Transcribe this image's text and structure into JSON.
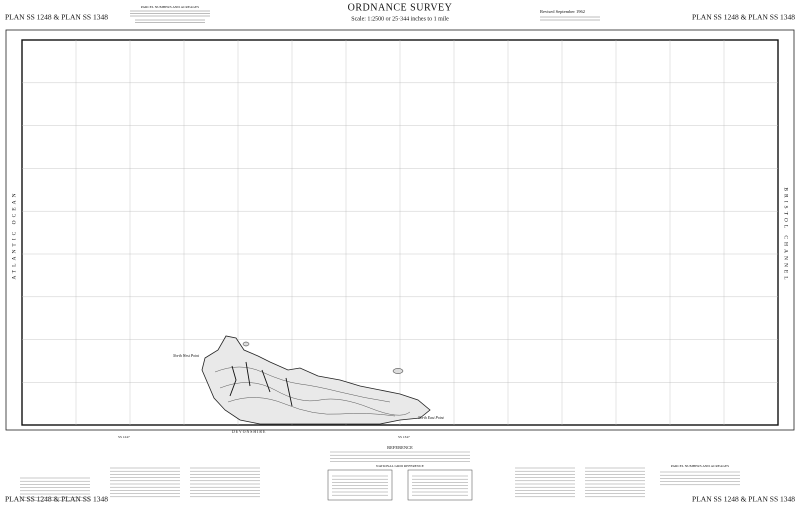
{
  "header": {
    "title": "ORDNANCE SURVEY",
    "scale": "Scale: 1:2500 or 25·344 inches to 1 mile",
    "revised": "Revised September 1962",
    "parcel_heading": "PARCEL NUMBERS AND ACREAGES"
  },
  "corners": {
    "top_left": "PLAN SS 1248 & PLAN SS 1348",
    "top_right": "PLAN SS 1248 & PLAN SS 1348",
    "bottom_left": "PLAN SS 1248 & PLAN SS 1348",
    "bottom_right": "PLAN SS 1248 & PLAN SS 1348"
  },
  "map": {
    "left_margin": "ATLANTIC OCEAN",
    "right_margin": "BRISTOL CHANNEL",
    "north_west_point": "North West Point",
    "north_east_point": "North East Point",
    "county": "DEVONSHIRE",
    "sheet_left": "SS 1247",
    "sheet_right": "SS 1347"
  },
  "footer": {
    "reference": "REFERENCE",
    "grid_reference": "NATIONAL GRID REFERENCE",
    "parcel_heading": "PARCEL NUMBERS AND ACREAGES"
  }
}
